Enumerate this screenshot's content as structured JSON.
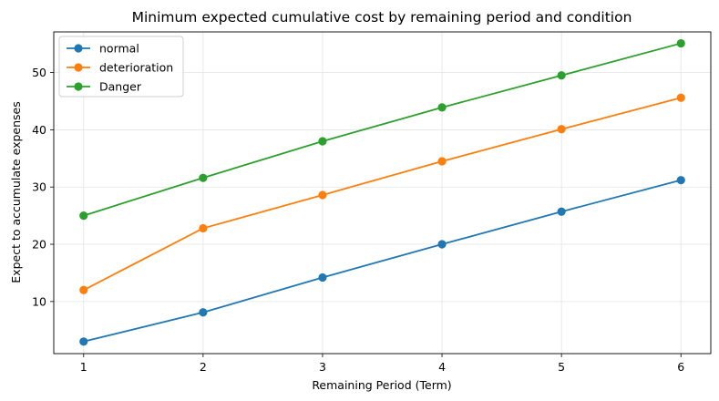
{
  "chart_data": {
    "type": "line",
    "title": "Minimum expected cumulative cost by remaining period and condition",
    "xlabel": "Remaining Period (Term)",
    "ylabel": "Expect to accumulate expenses",
    "x": [
      1,
      2,
      3,
      4,
      5,
      6
    ],
    "xlim": [
      0.75,
      6.25
    ],
    "ylim": [
      0.9,
      57.1
    ],
    "yticks": [
      10,
      20,
      30,
      40,
      50
    ],
    "grid": true,
    "legend_position": "upper-left",
    "series": [
      {
        "name": "normal",
        "color": "#1f77b4",
        "values": [
          3.0,
          8.1,
          14.2,
          20.0,
          25.7,
          31.2
        ]
      },
      {
        "name": "deterioration",
        "color": "#ff7f0e",
        "values": [
          12.0,
          22.8,
          28.6,
          34.5,
          40.1,
          45.6
        ]
      },
      {
        "name": "Danger",
        "color": "#2ca02c",
        "values": [
          25.0,
          31.6,
          38.0,
          43.9,
          49.5,
          55.1
        ]
      }
    ]
  }
}
